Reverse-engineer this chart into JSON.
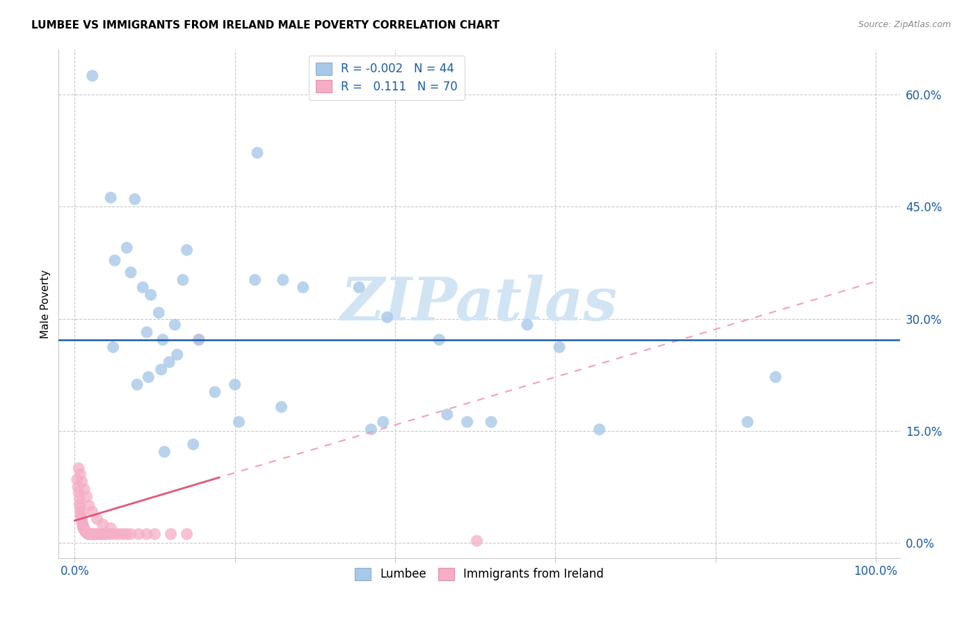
{
  "title": "LUMBEE VS IMMIGRANTS FROM IRELAND MALE POVERTY CORRELATION CHART",
  "source": "Source: ZipAtlas.com",
  "ylabel": "Male Poverty",
  "ytick_labels": [
    "0.0%",
    "15.0%",
    "30.0%",
    "45.0%",
    "60.0%"
  ],
  "ytick_values": [
    0.0,
    0.15,
    0.3,
    0.45,
    0.6
  ],
  "xtick_labels": [
    "0.0%",
    "",
    "",
    "",
    "",
    "100.0%"
  ],
  "xtick_values": [
    0.0,
    0.2,
    0.4,
    0.6,
    0.8,
    1.0
  ],
  "xlim": [
    -0.02,
    1.03
  ],
  "ylim": [
    -0.02,
    0.66
  ],
  "legend_blue_r": "-0.002",
  "legend_blue_n": "44",
  "legend_pink_r": "0.111",
  "legend_pink_n": "70",
  "lumbee_color": "#a8c8e8",
  "lumbee_edge": "#88acd4",
  "ireland_color": "#f5aec5",
  "ireland_edge": "#e090b0",
  "lumbee_trendline_color": "#1a5ca8",
  "ireland_trendline_color": "#e05878",
  "ireland_trendline_dashed_color": "#f0a0b8",
  "grid_color": "#c8c8c8",
  "background_color": "#ffffff",
  "watermark": "ZIPatlas",
  "watermark_color": "#d0e4f4",
  "lumbee_trendline_y": 0.272,
  "ireland_trendline_start_y": 0.03,
  "ireland_trendline_end_y": 0.35,
  "lumbee_x": [
    0.022,
    0.045,
    0.065,
    0.075,
    0.05,
    0.07,
    0.085,
    0.095,
    0.105,
    0.11,
    0.125,
    0.135,
    0.09,
    0.14,
    0.155,
    0.175,
    0.2,
    0.225,
    0.26,
    0.285,
    0.355,
    0.37,
    0.385,
    0.455,
    0.465,
    0.49,
    0.52,
    0.565,
    0.605,
    0.655,
    0.84,
    0.875,
    0.048,
    0.078,
    0.092,
    0.108,
    0.118,
    0.128,
    0.148,
    0.205,
    0.228,
    0.258,
    0.112,
    0.39
  ],
  "lumbee_y": [
    0.625,
    0.462,
    0.395,
    0.46,
    0.378,
    0.362,
    0.342,
    0.332,
    0.308,
    0.272,
    0.292,
    0.352,
    0.282,
    0.392,
    0.272,
    0.202,
    0.212,
    0.352,
    0.352,
    0.342,
    0.342,
    0.152,
    0.162,
    0.272,
    0.172,
    0.162,
    0.162,
    0.292,
    0.262,
    0.152,
    0.162,
    0.222,
    0.262,
    0.212,
    0.222,
    0.232,
    0.242,
    0.252,
    0.132,
    0.162,
    0.522,
    0.182,
    0.122,
    0.302
  ],
  "ireland_x": [
    0.003,
    0.004,
    0.005,
    0.006,
    0.006,
    0.007,
    0.007,
    0.008,
    0.008,
    0.009,
    0.009,
    0.01,
    0.01,
    0.011,
    0.011,
    0.012,
    0.012,
    0.013,
    0.013,
    0.014,
    0.014,
    0.015,
    0.015,
    0.016,
    0.016,
    0.017,
    0.017,
    0.018,
    0.018,
    0.019,
    0.019,
    0.02,
    0.02,
    0.021,
    0.022,
    0.023,
    0.024,
    0.025,
    0.026,
    0.027,
    0.028,
    0.03,
    0.032,
    0.034,
    0.036,
    0.038,
    0.04,
    0.045,
    0.05,
    0.055,
    0.06,
    0.065,
    0.07,
    0.08,
    0.09,
    0.1,
    0.12,
    0.14,
    0.005,
    0.007,
    0.009,
    0.012,
    0.015,
    0.018,
    0.022,
    0.028,
    0.035,
    0.045,
    0.502,
    0.155
  ],
  "ireland_y": [
    0.085,
    0.075,
    0.068,
    0.06,
    0.052,
    0.048,
    0.042,
    0.038,
    0.035,
    0.032,
    0.028,
    0.025,
    0.022,
    0.022,
    0.02,
    0.018,
    0.018,
    0.016,
    0.016,
    0.015,
    0.015,
    0.014,
    0.014,
    0.013,
    0.013,
    0.012,
    0.012,
    0.012,
    0.012,
    0.012,
    0.012,
    0.012,
    0.012,
    0.012,
    0.012,
    0.012,
    0.012,
    0.012,
    0.012,
    0.012,
    0.012,
    0.012,
    0.012,
    0.012,
    0.012,
    0.012,
    0.012,
    0.012,
    0.012,
    0.012,
    0.012,
    0.012,
    0.012,
    0.012,
    0.012,
    0.012,
    0.012,
    0.012,
    0.1,
    0.092,
    0.082,
    0.072,
    0.062,
    0.05,
    0.042,
    0.032,
    0.025,
    0.02,
    0.003,
    0.272
  ]
}
